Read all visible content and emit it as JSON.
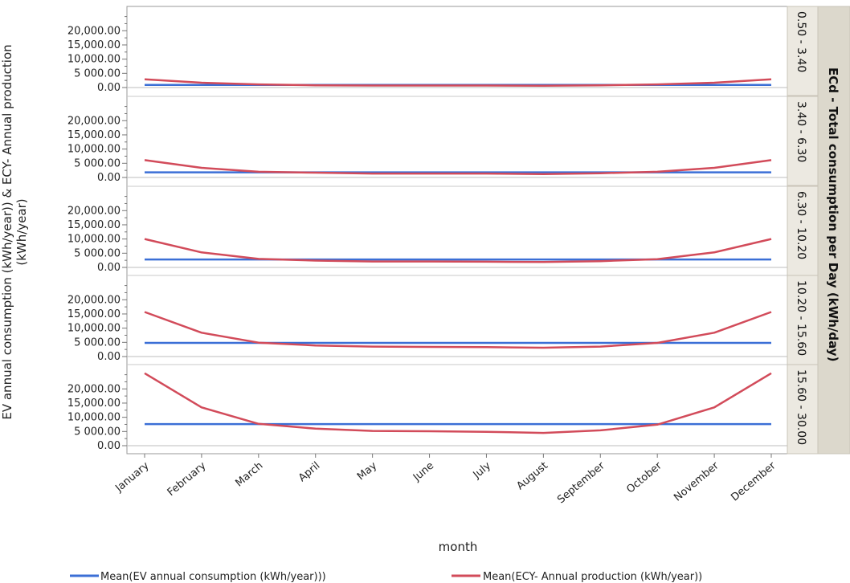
{
  "chart_data": {
    "type": "line",
    "xlabel": "month",
    "ylabel": "EV annual consumption (kWh/year)) & ECY- Annual production (kWh/year)",
    "facet_title": "ECd - Total consumption per Day (kWh/day)",
    "categories": [
      "January",
      "February",
      "March",
      "April",
      "May",
      "June",
      "July",
      "August",
      "September",
      "October",
      "November",
      "December"
    ],
    "y_tick_values": [
      0,
      5000,
      10000,
      15000,
      20000
    ],
    "y_tick_labels": [
      "0.00",
      "5 000.00",
      "10,000.00",
      "15,000.00",
      "20,000.00"
    ],
    "ylim": [
      0,
      28000
    ],
    "grid": false,
    "legend_position": "bottom",
    "legend": [
      {
        "label": "Mean(EV annual consumption (kWh/year)))",
        "color": "#3b6fd6"
      },
      {
        "label": "Mean(ECY- Annual production (kWh/year))",
        "color": "#d24b5a"
      }
    ],
    "panels": [
      {
        "label": "0.50 - 3.40",
        "ev": [
          900,
          900,
          900,
          900,
          900,
          900,
          900,
          900,
          900,
          900,
          900,
          900
        ],
        "ecy": [
          2900,
          1700,
          1100,
          800,
          700,
          700,
          700,
          650,
          750,
          1100,
          1700,
          2900
        ]
      },
      {
        "label": "3.40 - 6.30",
        "ev": [
          1800,
          1800,
          1800,
          1800,
          1800,
          1800,
          1800,
          1800,
          1800,
          1800,
          1800,
          1800
        ],
        "ecy": [
          6100,
          3400,
          2000,
          1700,
          1400,
          1400,
          1400,
          1200,
          1500,
          2000,
          3400,
          6100
        ]
      },
      {
        "label": "6.30 - 10.20",
        "ev": [
          2800,
          2800,
          2800,
          2800,
          2800,
          2800,
          2800,
          2800,
          2800,
          2800,
          2800,
          2800
        ],
        "ecy": [
          10000,
          5300,
          3000,
          2400,
          2100,
          2100,
          2000,
          1900,
          2200,
          2900,
          5300,
          10000
        ]
      },
      {
        "label": "10.20 - 15.60",
        "ev": [
          4800,
          4800,
          4800,
          4800,
          4800,
          4800,
          4800,
          4800,
          4800,
          4800,
          4800,
          4800
        ],
        "ecy": [
          15700,
          8400,
          4900,
          3900,
          3500,
          3400,
          3300,
          3100,
          3500,
          4800,
          8400,
          15700
        ]
      },
      {
        "label": "15.60 - 30.00",
        "ev": [
          7600,
          7600,
          7600,
          7600,
          7600,
          7600,
          7600,
          7600,
          7600,
          7600,
          7600,
          7600
        ],
        "ecy": [
          25500,
          13500,
          7700,
          6000,
          5200,
          5100,
          4900,
          4500,
          5400,
          7400,
          13500,
          25500
        ]
      }
    ]
  }
}
